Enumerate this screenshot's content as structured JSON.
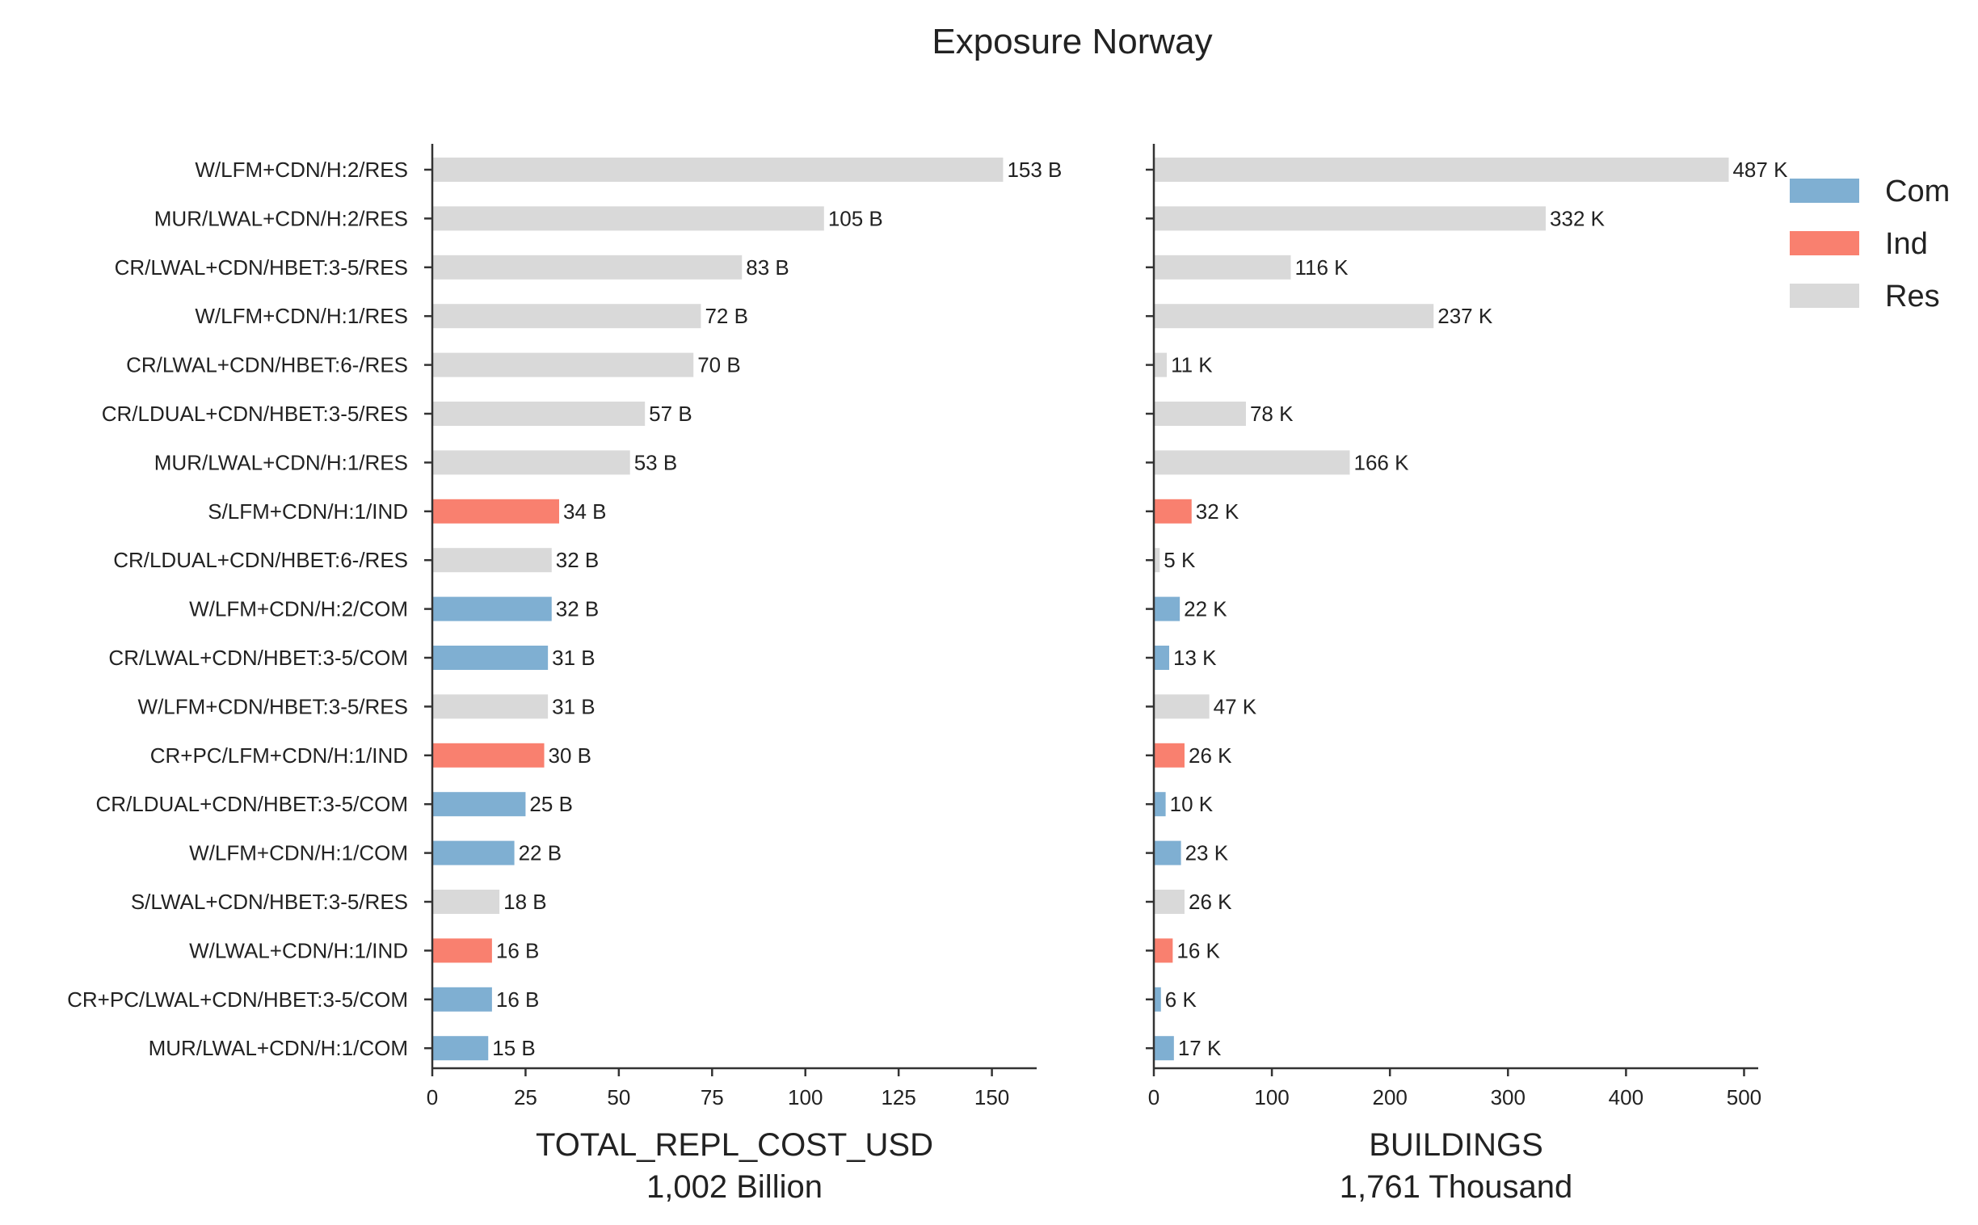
{
  "chart_data": {
    "type": "bar",
    "orientation": "horizontal",
    "title": "Exposure Norway",
    "categories": [
      "W/LFM+CDN/H:2/RES",
      "MUR/LWAL+CDN/H:2/RES",
      "CR/LWAL+CDN/HBET:3-5/RES",
      "W/LFM+CDN/H:1/RES",
      "CR/LWAL+CDN/HBET:6-/RES",
      "CR/LDUAL+CDN/HBET:3-5/RES",
      "MUR/LWAL+CDN/H:1/RES",
      "S/LFM+CDN/H:1/IND",
      "CR/LDUAL+CDN/HBET:6-/RES",
      "W/LFM+CDN/H:2/COM",
      "CR/LWAL+CDN/HBET:3-5/COM",
      "W/LFM+CDN/HBET:3-5/RES",
      "CR+PC/LFM+CDN/H:1/IND",
      "CR/LDUAL+CDN/HBET:3-5/COM",
      "W/LFM+CDN/H:1/COM",
      "S/LWAL+CDN/HBET:3-5/RES",
      "W/LWAL+CDN/H:1/IND",
      "CR+PC/LWAL+CDN/HBET:3-5/COM",
      "MUR/LWAL+CDN/H:1/COM"
    ],
    "occupancy": [
      "Res",
      "Res",
      "Res",
      "Res",
      "Res",
      "Res",
      "Res",
      "Ind",
      "Res",
      "Com",
      "Com",
      "Res",
      "Ind",
      "Com",
      "Com",
      "Res",
      "Ind",
      "Com",
      "Com"
    ],
    "legend": {
      "position": "top-right",
      "entries": [
        {
          "name": "Com",
          "color": "#7fafd2"
        },
        {
          "name": "Ind",
          "color": "#f9806f"
        },
        {
          "name": "Res",
          "color": "#d9d9d9"
        }
      ]
    },
    "panels": [
      {
        "xlabel": "TOTAL_REPL_COST_USD",
        "subtitle": "1,002 Billion",
        "values": [
          153,
          105,
          83,
          72,
          70,
          57,
          53,
          34,
          32,
          32,
          31,
          31,
          30,
          25,
          22,
          18,
          16,
          16,
          15
        ],
        "labels": [
          "153 B",
          "105 B",
          "83 B",
          "72 B",
          "70 B",
          "57 B",
          "53 B",
          "34 B",
          "32 B",
          "32 B",
          "31 B",
          "31 B",
          "30 B",
          "25 B",
          "22 B",
          "18 B",
          "16 B",
          "16 B",
          "15 B"
        ],
        "xlim": [
          0,
          162
        ],
        "ticks": [
          0,
          25,
          50,
          75,
          100,
          125,
          150
        ],
        "tick_labels": [
          "0",
          "25",
          "50",
          "75",
          "100",
          "125",
          "150"
        ],
        "show_category_labels": true
      },
      {
        "xlabel": "BUILDINGS",
        "subtitle": "1,761 Thousand",
        "values": [
          487,
          332,
          116,
          237,
          11,
          78,
          166,
          32,
          5,
          22,
          13,
          47,
          26,
          10,
          23,
          26,
          16,
          6,
          17
        ],
        "labels": [
          "487 K",
          "332 K",
          "116 K",
          "237 K",
          "11 K",
          "78 K",
          "166 K",
          "32 K",
          "5 K",
          "22 K",
          "13 K",
          "47 K",
          "26 K",
          "10 K",
          "23 K",
          "26 K",
          "16 K",
          "6 K",
          "17 K"
        ],
        "xlim": [
          0,
          512
        ],
        "ticks": [
          0,
          100,
          200,
          300,
          400,
          500
        ],
        "tick_labels": [
          "0",
          "100",
          "200",
          "300",
          "400",
          "500"
        ],
        "show_category_labels": false
      }
    ]
  }
}
